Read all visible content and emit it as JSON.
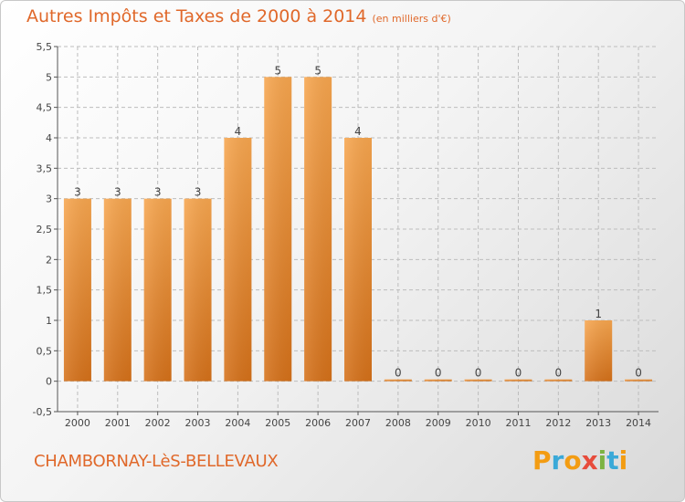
{
  "chart_data": {
    "type": "bar",
    "title": "Autres Impôts et Taxes de 2000 à 2014",
    "subtitle": "(en milliers d'€)",
    "categories": [
      "2000",
      "2001",
      "2002",
      "2003",
      "2004",
      "2005",
      "2006",
      "2007",
      "2008",
      "2009",
      "2010",
      "2011",
      "2012",
      "2013",
      "2014"
    ],
    "values": [
      3,
      3,
      3,
      3,
      4,
      5,
      5,
      4,
      0,
      0,
      0,
      0,
      0,
      1,
      0
    ],
    "value_labels": [
      "3",
      "3",
      "3",
      "3",
      "4",
      "5",
      "5",
      "4",
      "0",
      "0",
      "0",
      "0",
      "0",
      "1",
      "0"
    ],
    "ylim": [
      -0.5,
      5.5
    ],
    "yticks": [
      -0.5,
      0,
      0.5,
      1,
      1.5,
      2,
      2.5,
      3,
      3.5,
      4,
      4.5,
      5,
      5.5
    ],
    "ytick_labels": [
      "-0,5",
      "0",
      "0,5",
      "1",
      "1,5",
      "2",
      "2,5",
      "3",
      "3,5",
      "4",
      "4,5",
      "5",
      "5,5"
    ],
    "grid": true,
    "bar_color_top": "#f7a64f",
    "bar_color_bottom": "#d5711a"
  },
  "footer": {
    "place_name": "CHAMBORNAY-LèS-BELLEVAUX",
    "logo_text": "Proxiti"
  },
  "colors": {
    "title": "#e0682a",
    "grid": "#bdbdbd",
    "axis": "#555555",
    "logo": [
      "#f39c12",
      "#3aa9d8",
      "#f39c12",
      "#e74c3c",
      "#7cb342",
      "#3aa9d8",
      "#f39c12"
    ]
  }
}
